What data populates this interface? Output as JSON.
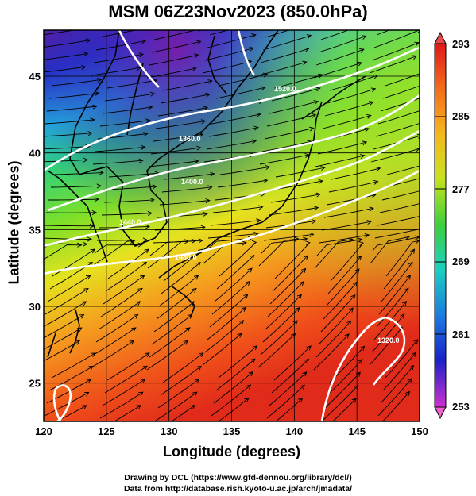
{
  "title": "MSM 06Z23Nov2023 (850.0hPa)",
  "xlabel": "Longitude (degrees)",
  "ylabel": "Latitude  (degrees)",
  "credit_line1": "Drawing by DCL (https://www.gfd-dennou.org/library/dcl/)",
  "credit_line2": "Data from http://database.rish.kyoto-u.ac.jp/arch/jmadata/",
  "lon_ticks": [
    "120",
    "125",
    "130",
    "135",
    "140",
    "145",
    "150"
  ],
  "lat_ticks": [
    "25",
    "30",
    "35",
    "40",
    "45"
  ],
  "colorbar_ticks": [
    "293",
    "285",
    "277",
    "269",
    "261",
    "253"
  ],
  "contour_labels": [
    "1320.0",
    "1360.0",
    "1400.0",
    "1440.0",
    "1480.0",
    "1520.0"
  ]
}
